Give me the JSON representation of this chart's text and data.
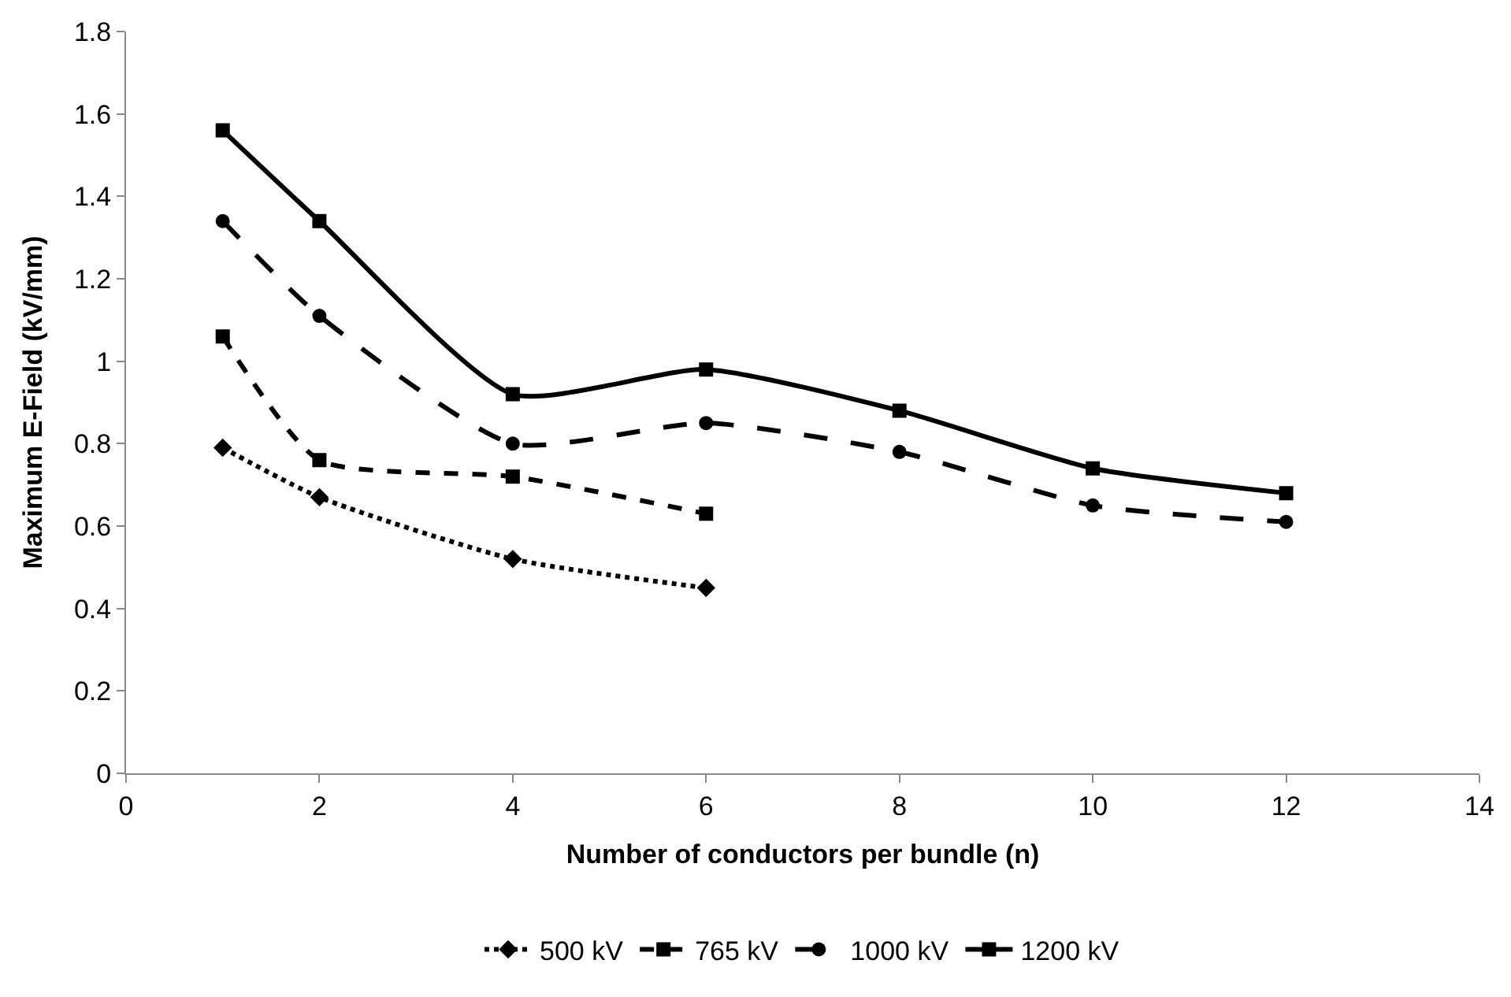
{
  "chart_data": {
    "type": "line",
    "xlabel": "Number of conductors per bundle (n)",
    "ylabel": "Maximum E-Field (kV/mm)",
    "xlim": [
      0,
      14
    ],
    "xticks": [
      0,
      2,
      4,
      6,
      8,
      10,
      12,
      14
    ],
    "ylim": [
      0,
      1.8
    ],
    "yticks": [
      0,
      0.2,
      0.4,
      0.6,
      0.8,
      1,
      1.2,
      1.4,
      1.6,
      1.8
    ],
    "legend": "bottom",
    "series": [
      {
        "name": "500 kV",
        "color": "#000000",
        "marker": "diamond",
        "line_style": "dotted",
        "x": [
          1,
          2,
          4,
          6
        ],
        "values": [
          0.79,
          0.67,
          0.52,
          0.45
        ]
      },
      {
        "name": "765 kV",
        "color": "#000000",
        "marker": "square",
        "line_style": "dashed",
        "x": [
          1,
          2,
          4,
          6
        ],
        "values": [
          1.06,
          0.76,
          0.72,
          0.63
        ]
      },
      {
        "name": "1000 kV",
        "color": "#000000",
        "marker": "circle",
        "line_style": "longdash",
        "x": [
          1,
          2,
          4,
          6,
          8,
          10,
          12
        ],
        "values": [
          1.34,
          1.11,
          0.8,
          0.85,
          0.78,
          0.65,
          0.61
        ]
      },
      {
        "name": "1200 kV",
        "color": "#000000",
        "marker": "cross",
        "line_style": "solid",
        "x": [
          1,
          2,
          4,
          6,
          8,
          10,
          12
        ],
        "values": [
          1.56,
          1.34,
          0.92,
          0.98,
          0.88,
          0.74,
          0.68
        ]
      }
    ]
  }
}
